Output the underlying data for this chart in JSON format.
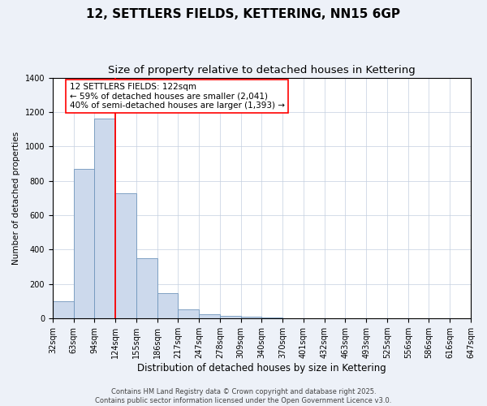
{
  "title": "12, SETTLERS FIELDS, KETTERING, NN15 6GP",
  "subtitle": "Size of property relative to detached houses in Kettering",
  "xlabel": "Distribution of detached houses by size in Kettering",
  "ylabel": "Number of detached properties",
  "categories": [
    "32sqm",
    "63sqm",
    "94sqm",
    "124sqm",
    "155sqm",
    "186sqm",
    "217sqm",
    "247sqm",
    "278sqm",
    "309sqm",
    "340sqm",
    "370sqm",
    "401sqm",
    "432sqm",
    "463sqm",
    "493sqm",
    "525sqm",
    "556sqm",
    "586sqm",
    "616sqm",
    "647sqm"
  ],
  "values": [
    100,
    870,
    1160,
    730,
    350,
    145,
    55,
    25,
    15,
    10,
    5,
    2,
    1,
    0,
    0,
    0,
    0,
    0,
    0,
    0,
    0
  ],
  "bar_color": "#ccd9ec",
  "bar_edge_color": "#7096bc",
  "vline_x": 2.0,
  "vline_color": "red",
  "annotation_text": "12 SETTLERS FIELDS: 122sqm\n← 59% of detached houses are smaller (2,041)\n40% of semi-detached houses are larger (1,393) →",
  "annotation_box_color": "white",
  "annotation_box_edge_color": "red",
  "ylim": [
    0,
    1400
  ],
  "yticks": [
    0,
    200,
    400,
    600,
    800,
    1000,
    1200,
    1400
  ],
  "footer": "Contains HM Land Registry data © Crown copyright and database right 2025.\nContains public sector information licensed under the Open Government Licence v3.0.",
  "background_color": "#edf1f8",
  "plot_bg_color": "#ffffff",
  "title_fontsize": 11,
  "subtitle_fontsize": 9.5,
  "xlabel_fontsize": 8.5,
  "ylabel_fontsize": 7.5,
  "tick_fontsize": 7,
  "footer_fontsize": 6,
  "annotation_fontsize": 7.5
}
